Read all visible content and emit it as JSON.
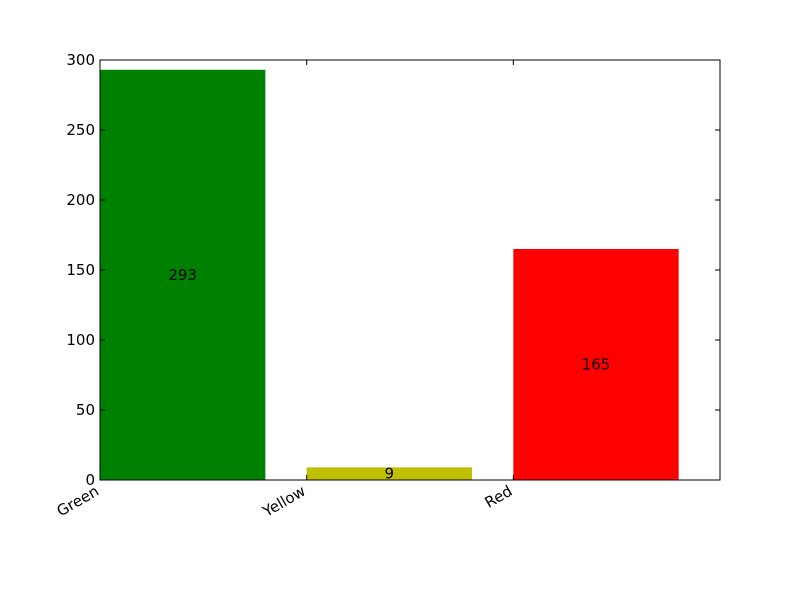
{
  "chart_data": {
    "type": "bar",
    "categories": [
      "Green",
      "Yellow",
      "Red"
    ],
    "values": [
      293,
      9,
      165
    ],
    "colors": [
      "#008000",
      "#bfbf00",
      "#ff0000"
    ],
    "title": "",
    "xlabel": "",
    "ylabel": "",
    "ylim": [
      0,
      300
    ],
    "yticks": [
      0,
      50,
      100,
      150,
      200,
      250,
      300
    ],
    "grid": false,
    "legend": "none"
  }
}
